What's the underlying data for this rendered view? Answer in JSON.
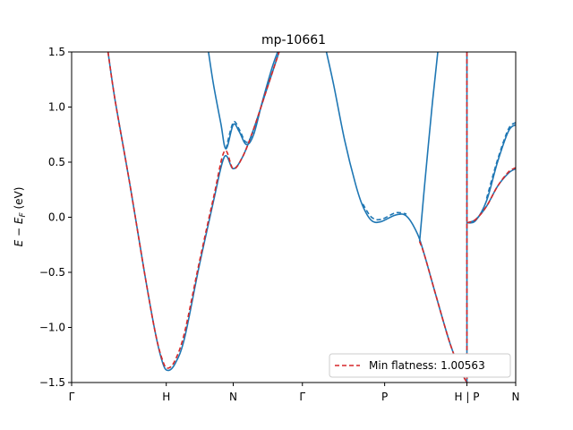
{
  "chart_data": {
    "type": "line",
    "title": "mp-10661",
    "ylabel": "E − E_F (eV)",
    "xlabel": "",
    "ylim": [
      -1.5,
      1.5
    ],
    "xlim": [
      0,
      6.1
    ],
    "yticks": [
      -1.5,
      -1.0,
      -0.5,
      0.0,
      0.5,
      1.0,
      1.5
    ],
    "ytick_labels": [
      "−1.5",
      "−1.0",
      "−0.5",
      "0.0",
      "0.5",
      "1.0",
      "1.5"
    ],
    "xticks": [
      {
        "label": "Γ",
        "x": 0.0
      },
      {
        "label": "H",
        "x": 1.3
      },
      {
        "label": "N",
        "x": 2.22
      },
      {
        "label": "Γ",
        "x": 3.17
      },
      {
        "label": "P",
        "x": 4.3
      },
      {
        "label": "H | P",
        "x": 5.43
      },
      {
        "label": "N",
        "x": 6.1
      }
    ],
    "grid": false,
    "legend": {
      "position": "lower-right",
      "entries": [
        {
          "label": "Min flatness: 1.00563",
          "color": "#d62728",
          "style": "dashed"
        }
      ]
    },
    "colors": {
      "band": "#1f77b4",
      "flat": "#d62728"
    },
    "series": [
      {
        "id": "band1",
        "color": "#1f77b4",
        "points": [
          [
            0.5,
            1.5
          ],
          [
            0.6,
            1.05
          ],
          [
            0.8,
            0.3
          ],
          [
            1.0,
            -0.5
          ],
          [
            1.15,
            -1.05
          ],
          [
            1.25,
            -1.32
          ],
          [
            1.32,
            -1.39
          ],
          [
            1.42,
            -1.33
          ],
          [
            1.55,
            -1.1
          ],
          [
            1.75,
            -0.45
          ],
          [
            1.95,
            0.15
          ],
          [
            2.1,
            0.55
          ],
          [
            2.22,
            0.44
          ],
          [
            2.35,
            0.55
          ],
          [
            2.5,
            0.8
          ],
          [
            2.7,
            1.2
          ],
          [
            2.85,
            1.5
          ]
        ]
      },
      {
        "id": "band1b",
        "color": "#1f77b4",
        "points": [
          [
            1.88,
            1.5
          ],
          [
            1.95,
            1.2
          ],
          [
            2.05,
            0.85
          ],
          [
            2.12,
            0.62
          ],
          [
            2.22,
            0.84
          ],
          [
            2.3,
            0.78
          ],
          [
            2.4,
            0.66
          ],
          [
            2.5,
            0.75
          ],
          [
            2.62,
            1.05
          ],
          [
            2.75,
            1.35
          ],
          [
            2.83,
            1.5
          ]
        ]
      },
      {
        "id": "band2",
        "color": "#1f77b4",
        "points": [
          [
            3.5,
            1.5
          ],
          [
            3.6,
            1.2
          ],
          [
            3.75,
            0.7
          ],
          [
            3.9,
            0.3
          ],
          [
            4.0,
            0.1
          ],
          [
            4.12,
            -0.03
          ],
          [
            4.25,
            -0.04
          ],
          [
            4.45,
            0.02
          ],
          [
            4.6,
            0.01
          ],
          [
            4.75,
            -0.15
          ],
          [
            4.85,
            -0.35
          ],
          [
            5.0,
            -0.7
          ],
          [
            5.2,
            -1.15
          ],
          [
            5.35,
            -1.4
          ],
          [
            5.43,
            -1.5
          ]
        ]
      },
      {
        "id": "band2b",
        "color": "#1f77b4",
        "points": [
          [
            4.78,
            -0.22
          ],
          [
            4.85,
            0.3
          ],
          [
            4.95,
            1.0
          ],
          [
            5.03,
            1.5
          ]
        ]
      },
      {
        "id": "band3",
        "color": "#1f77b4",
        "points": [
          [
            5.43,
            1.5
          ],
          [
            5.43,
            -1.5
          ]
        ]
      },
      {
        "id": "band4",
        "color": "#1f77b4",
        "points": [
          [
            5.43,
            -0.05
          ],
          [
            5.55,
            -0.03
          ],
          [
            5.7,
            0.15
          ],
          [
            5.85,
            0.5
          ],
          [
            6.0,
            0.78
          ],
          [
            6.1,
            0.84
          ]
        ]
      },
      {
        "id": "band5",
        "color": "#1f77b4",
        "points": [
          [
            5.43,
            -0.05
          ],
          [
            5.55,
            -0.02
          ],
          [
            5.7,
            0.1
          ],
          [
            5.85,
            0.28
          ],
          [
            6.0,
            0.4
          ],
          [
            6.1,
            0.44
          ]
        ]
      },
      {
        "id": "flat1",
        "color": "#d62728",
        "dashed": true,
        "points": [
          [
            0.5,
            1.5
          ],
          [
            0.6,
            1.05
          ],
          [
            0.8,
            0.3
          ],
          [
            1.0,
            -0.5
          ],
          [
            1.15,
            -1.05
          ],
          [
            1.25,
            -1.3
          ],
          [
            1.32,
            -1.37
          ],
          [
            1.42,
            -1.3
          ],
          [
            1.55,
            -1.05
          ],
          [
            1.75,
            -0.42
          ],
          [
            1.95,
            0.18
          ],
          [
            2.1,
            0.6
          ],
          [
            2.22,
            0.44
          ],
          [
            2.35,
            0.55
          ],
          [
            2.5,
            0.8
          ],
          [
            2.7,
            1.2
          ],
          [
            2.85,
            1.5
          ]
        ]
      },
      {
        "id": "flat2",
        "color": "#d62728",
        "dashed": true,
        "points": [
          [
            4.78,
            -0.22
          ],
          [
            4.85,
            -0.35
          ],
          [
            5.0,
            -0.7
          ],
          [
            5.2,
            -1.15
          ],
          [
            5.35,
            -1.4
          ],
          [
            5.43,
            -1.5
          ]
        ]
      },
      {
        "id": "flat3",
        "color": "#d62728",
        "dashed": true,
        "points": [
          [
            5.43,
            1.5
          ],
          [
            5.43,
            -1.5
          ]
        ]
      },
      {
        "id": "flat4",
        "color": "#d62728",
        "dashed": true,
        "points": [
          [
            5.43,
            -0.05
          ],
          [
            5.55,
            -0.02
          ],
          [
            5.7,
            0.1
          ],
          [
            5.85,
            0.28
          ],
          [
            6.0,
            0.41
          ],
          [
            6.1,
            0.45
          ]
        ]
      },
      {
        "id": "band1dash",
        "color": "#1f77b4",
        "dashed": true,
        "points": [
          [
            2.12,
            0.62
          ],
          [
            2.22,
            0.86
          ],
          [
            2.3,
            0.8
          ],
          [
            2.4,
            0.68
          ],
          [
            2.5,
            0.77
          ]
        ]
      },
      {
        "id": "band2dash",
        "color": "#1f77b4",
        "dashed": true,
        "points": [
          [
            4.0,
            0.12
          ],
          [
            4.12,
            0.0
          ],
          [
            4.25,
            -0.02
          ],
          [
            4.45,
            0.04
          ],
          [
            4.6,
            0.03
          ]
        ]
      },
      {
        "id": "band4dash",
        "color": "#1f77b4",
        "dashed": true,
        "points": [
          [
            5.7,
            0.17
          ],
          [
            5.85,
            0.52
          ],
          [
            6.0,
            0.8
          ],
          [
            6.1,
            0.86
          ]
        ]
      }
    ]
  }
}
